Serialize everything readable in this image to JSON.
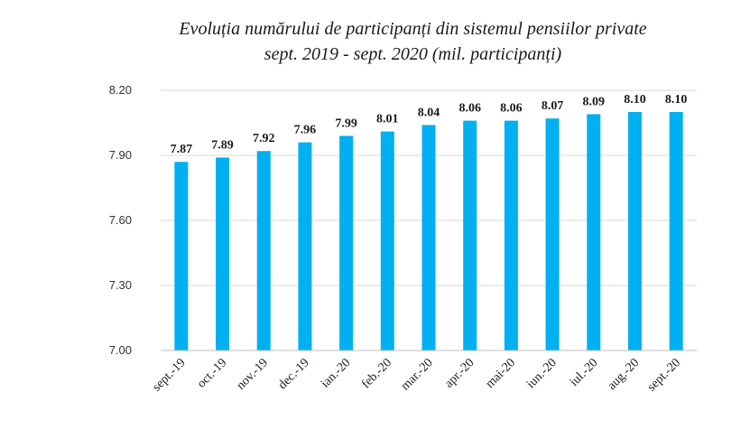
{
  "chart_data": {
    "type": "bar",
    "title": "Evoluția numărului de participanți din sistemul pensiilor private",
    "subtitle": "sept. 2019 - sept. 2020 (mil. participanți)",
    "categories": [
      "sept.-19",
      "oct.-19",
      "nov.-19",
      "dec.-19",
      "ian.-20",
      "feb.-20",
      "mar.-20",
      "apr.-20",
      "mai-20",
      "iun.-20",
      "iul.-20",
      "aug.-20",
      "sept.-20"
    ],
    "values": [
      7.87,
      7.89,
      7.92,
      7.96,
      7.99,
      8.01,
      8.04,
      8.06,
      8.06,
      8.07,
      8.09,
      8.1,
      8.1
    ],
    "value_labels": [
      "7.87",
      "7.89",
      "7.92",
      "7.96",
      "7.99",
      "8.01",
      "8.04",
      "8.06",
      "8.06",
      "8.07",
      "8.09",
      "8.10",
      "8.10"
    ],
    "ylim": [
      7.0,
      8.2
    ],
    "yticks": [
      7.0,
      7.3,
      7.6,
      7.9,
      8.2
    ],
    "ytick_labels": [
      "7.00",
      "7.30",
      "7.60",
      "7.90",
      "8.20"
    ],
    "xlabel": "",
    "ylabel": "",
    "grid": true,
    "bar_color": "#00b0f0",
    "grid_color": "#d9d9d9"
  }
}
